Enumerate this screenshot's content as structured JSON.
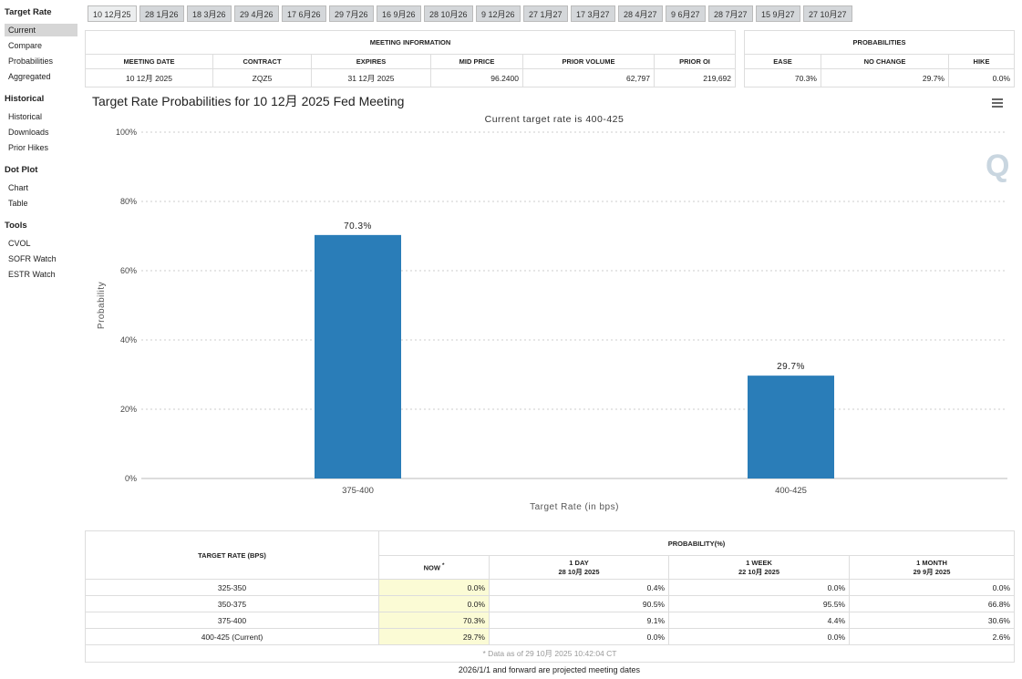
{
  "sidebar": [
    {
      "heading": "Target Rate",
      "items": [
        "Current",
        "Compare",
        "Probabilities",
        "Aggregated"
      ]
    },
    {
      "heading": "Historical",
      "items": [
        "Historical",
        "Downloads",
        "Prior Hikes"
      ]
    },
    {
      "heading": "Dot Plot",
      "items": [
        "Chart",
        "Table"
      ]
    },
    {
      "heading": "Tools",
      "items": [
        "CVOL",
        "SOFR Watch",
        "ESTR Watch"
      ]
    }
  ],
  "tabs": [
    "10 12月25",
    "28 1月26",
    "18 3月26",
    "29 4月26",
    "17 6月26",
    "29 7月26",
    "16 9月26",
    "28 10月26",
    "9 12月26",
    "27 1月27",
    "17 3月27",
    "28 4月27",
    "9 6月27",
    "28 7月27",
    "15 9月27",
    "27 10月27"
  ],
  "meeting_info": {
    "title": "MEETING INFORMATION",
    "headers": [
      "MEETING DATE",
      "CONTRACT",
      "EXPIRES",
      "MID PRICE",
      "PRIOR VOLUME",
      "PRIOR OI"
    ],
    "row": [
      "10 12月 2025",
      "ZQZ5",
      "31 12月 2025",
      "96.2400",
      "62,797",
      "219,692"
    ]
  },
  "probabilities": {
    "title": "PROBABILITIES",
    "headers": [
      "EASE",
      "NO CHANGE",
      "HIKE"
    ],
    "row": [
      "70.3%",
      "29.7%",
      "0.0%"
    ]
  },
  "chart_data": {
    "type": "bar",
    "title": "Target Rate Probabilities for 10 12月 2025 Fed Meeting",
    "subtitle": "Current target rate is 400-425",
    "x_label": "Target Rate (in bps)",
    "y_label": "Probability",
    "categories": [
      "375-400",
      "400-425"
    ],
    "values": [
      70.3,
      29.7
    ],
    "value_labels": [
      "70.3%",
      "29.7%"
    ],
    "color": "#2a7db8",
    "ylim": [
      0,
      100
    ],
    "yticks": [
      {
        "value": 0,
        "label": "0%"
      },
      {
        "value": 20,
        "label": "20%"
      },
      {
        "value": 40,
        "label": "40%"
      },
      {
        "value": 60,
        "label": "60%"
      },
      {
        "value": 80,
        "label": "80%"
      },
      {
        "value": 100,
        "label": "100%"
      }
    ],
    "grid": true
  },
  "prob_table": {
    "header_left": "TARGET RATE (BPS)",
    "header_group": "PROBABILITY(%)",
    "now": {
      "label": "NOW",
      "mark": "*"
    },
    "columns": [
      {
        "label": "1 DAY",
        "date": "28 10月 2025"
      },
      {
        "label": "1 WEEK",
        "date": "22 10月 2025"
      },
      {
        "label": "1 MONTH",
        "date": "29 9月 2025"
      }
    ],
    "rows": [
      [
        "325-350",
        "0.0%",
        "0.4%",
        "0.0%",
        "0.0%"
      ],
      [
        "350-375",
        "0.0%",
        "90.5%",
        "95.5%",
        "66.8%"
      ],
      [
        "375-400",
        "70.3%",
        "9.1%",
        "4.4%",
        "30.6%"
      ],
      [
        "400-425 (Current)",
        "29.7%",
        "0.0%",
        "0.0%",
        "2.6%"
      ]
    ],
    "note": "* Data as of 29 10月 2025 10:42:04 CT"
  },
  "footer": "2026/1/1 and forward are projected meeting dates"
}
